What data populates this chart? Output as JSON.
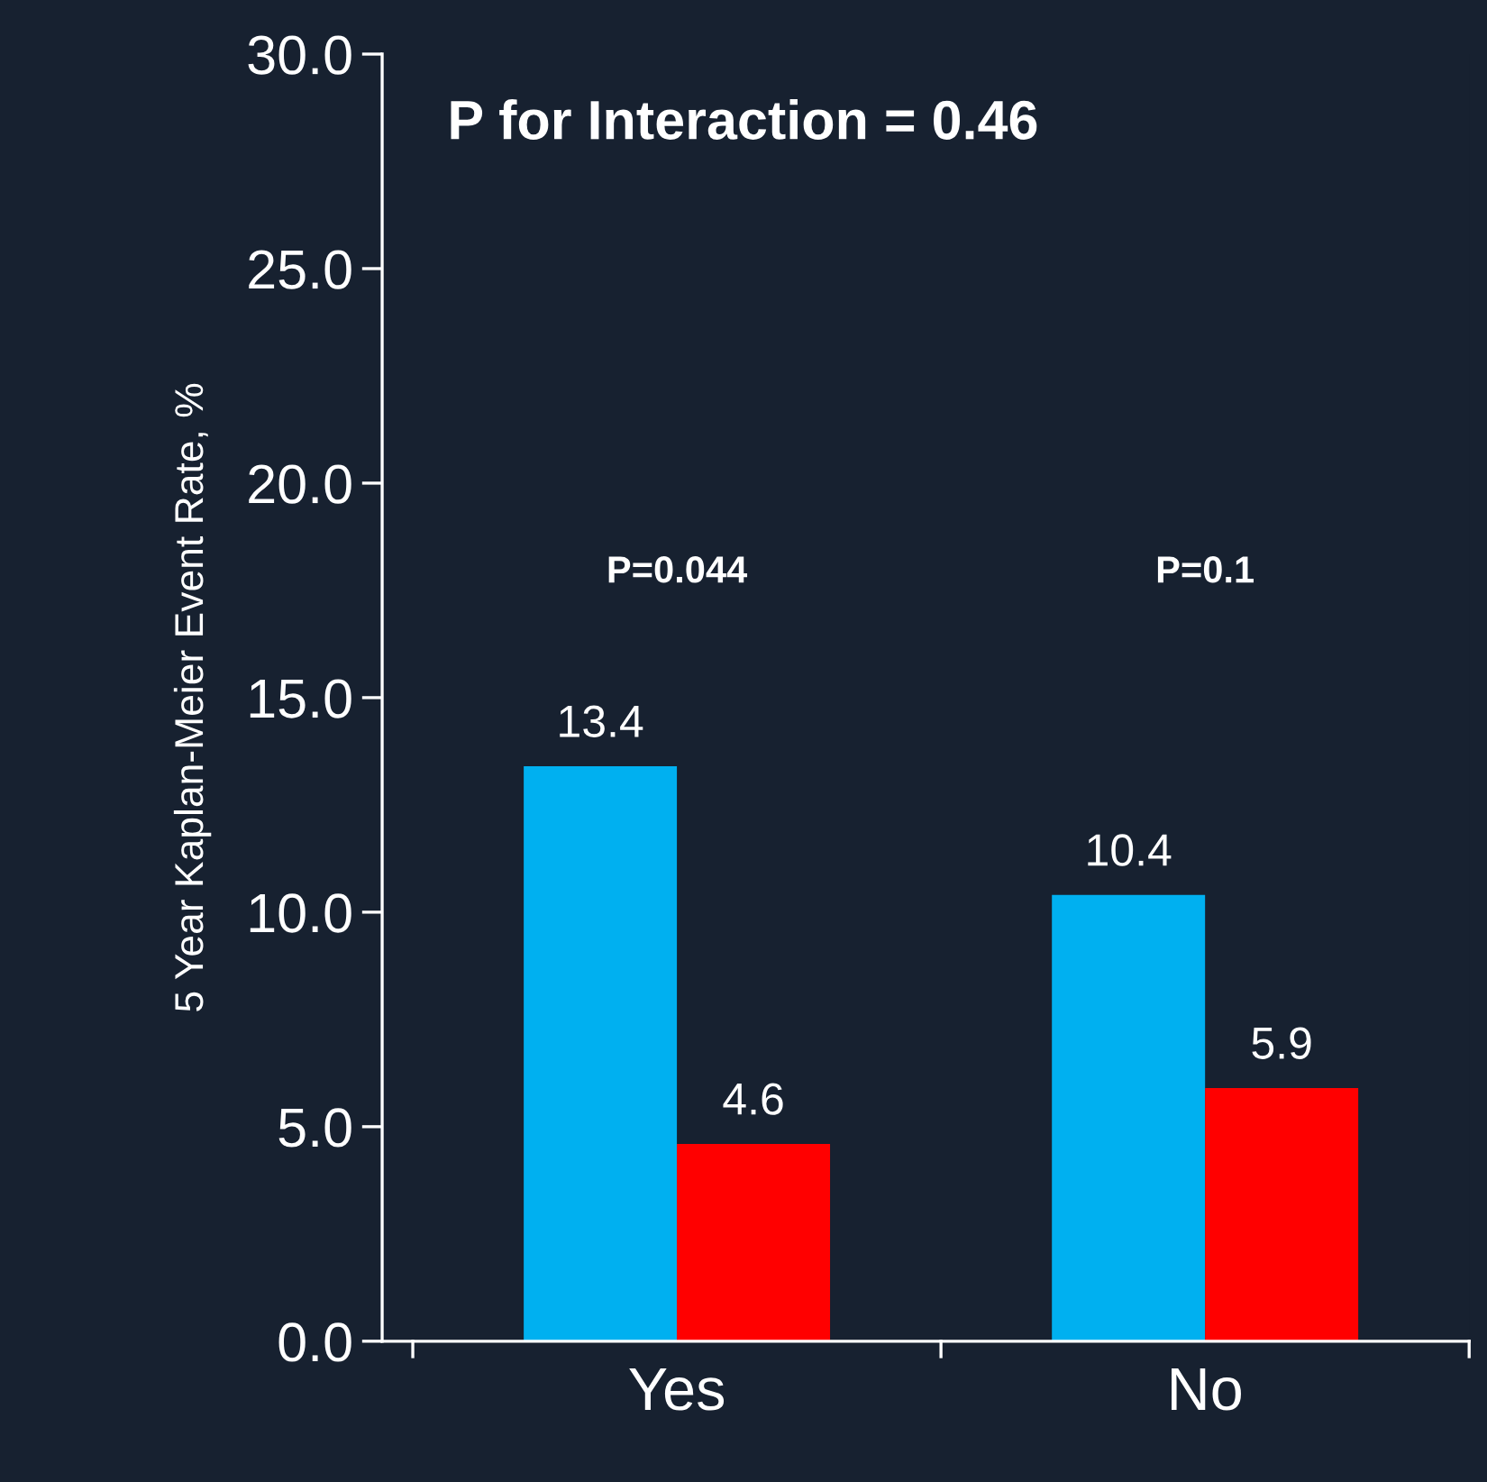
{
  "chart_data": {
    "type": "bar",
    "ylabel": "5 Year Kaplan-Meier Event Rate, %",
    "categories": [
      "Yes",
      "No"
    ],
    "series": [
      {
        "color": "#00b0f0",
        "values": [
          13.4,
          10.4
        ]
      },
      {
        "color": "#ff0000",
        "values": [
          4.6,
          5.9
        ]
      }
    ],
    "data_labels": true,
    "ylim": [
      0,
      30
    ],
    "yticks": [
      {
        "value": 0,
        "label": "0.0"
      },
      {
        "value": 5,
        "label": "5.0"
      },
      {
        "value": 10,
        "label": "10.0"
      },
      {
        "value": 15,
        "label": "15.0"
      },
      {
        "value": 20,
        "label": "20.0"
      },
      {
        "value": 25,
        "label": "25.0"
      },
      {
        "value": 30,
        "label": "30.0"
      }
    ],
    "annotations": [
      "P for Interaction = 0.46",
      "P=0.044",
      "P=0.1"
    ],
    "grid": false,
    "legend": false
  }
}
